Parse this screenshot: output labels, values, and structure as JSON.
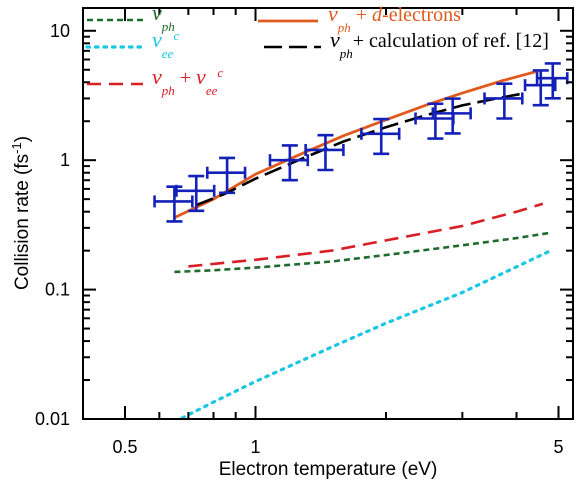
{
  "chart_data": {
    "type": "line",
    "xlabel": "Electron temperature (eV)",
    "ylabel": "Collision rate (fs-1)",
    "xscale": "log",
    "yscale": "log",
    "xlim": [
      0.4,
      5.4
    ],
    "ylim": [
      0.01,
      15
    ],
    "x_ticks": [
      0.5,
      1,
      5
    ],
    "x_tick_labels": [
      "0.5",
      "1",
      "5"
    ],
    "y_ticks": [
      0.01,
      0.1,
      1,
      10
    ],
    "y_tick_labels": [
      "0.01",
      "0.1",
      "1",
      "10"
    ],
    "grid": false,
    "legend": "top (two columns inside plot)",
    "series": [
      {
        "name": "ν_ph + d-electrons",
        "label_parts": [
          "ν",
          "ph",
          "+ ",
          "d",
          "-electrons"
        ],
        "color": "#e05a1e",
        "style": "solid",
        "x": [
          0.65,
          0.8,
          1.0,
          1.3,
          1.6,
          2.0,
          2.5,
          3.0,
          3.7,
          4.5
        ],
        "y": [
          0.36,
          0.5,
          0.78,
          1.15,
          1.55,
          2.05,
          2.7,
          3.3,
          4.1,
          4.9
        ]
      },
      {
        "name": "ν_ph + calculation of ref. [12]",
        "label_parts": [
          "ν",
          "ph",
          "+ calculation of ref. [12]"
        ],
        "color": "#000000",
        "style": "longdash",
        "x": [
          0.73,
          0.85,
          1.0,
          1.3,
          1.6,
          2.0,
          2.5,
          3.0,
          3.6,
          4.2
        ],
        "y": [
          0.45,
          0.55,
          0.72,
          1.05,
          1.4,
          1.8,
          2.25,
          2.65,
          3.0,
          3.3
        ]
      },
      {
        "name": "ν_ph",
        "label_parts": [
          "ν",
          "ph"
        ],
        "color": "#1f6b2e",
        "style": "shortdash",
        "x": [
          0.65,
          0.8,
          1.0,
          1.5,
          2.0,
          3.0,
          4.0,
          4.8
        ],
        "y": [
          0.137,
          0.141,
          0.148,
          0.165,
          0.185,
          0.22,
          0.25,
          0.275
        ]
      },
      {
        "name": "ν_ee^c",
        "label_parts": [
          "ν",
          "ee",
          "c"
        ],
        "color": "#19c6e6",
        "style": "dotted",
        "x": [
          0.65,
          0.8,
          1.0,
          1.5,
          2.0,
          3.0,
          4.0,
          4.8
        ],
        "y": [
          0.0095,
          0.0135,
          0.0195,
          0.036,
          0.055,
          0.095,
          0.15,
          0.2
        ]
      },
      {
        "name": "ν_ph + ν_ee^c",
        "label_parts": [
          "ν",
          "ph",
          "+ ",
          "ν",
          "ee",
          "c"
        ],
        "color": "#d81f26",
        "style": "dash",
        "x": [
          0.7,
          0.8,
          1.0,
          1.5,
          2.0,
          3.0,
          4.0,
          4.6
        ],
        "y": [
          0.151,
          0.158,
          0.17,
          0.2,
          0.24,
          0.31,
          0.4,
          0.46
        ]
      }
    ],
    "measurements": {
      "color": "#1321b8",
      "x": [
        0.65,
        0.73,
        0.86,
        1.2,
        1.45,
        1.95,
        2.6,
        2.85,
        3.75,
        4.55,
        4.85
      ],
      "y": [
        0.48,
        0.58,
        0.8,
        1.0,
        1.2,
        1.6,
        2.1,
        2.3,
        3.0,
        3.8,
        4.3
      ],
      "x_err_rel": [
        0.1,
        0.1,
        0.1,
        0.1,
        0.1,
        0.1,
        0.1,
        0.1,
        0.1,
        0.08,
        0.08
      ],
      "y_err_rel": [
        0.3,
        0.3,
        0.3,
        0.3,
        0.3,
        0.3,
        0.3,
        0.3,
        0.3,
        0.3,
        0.3
      ]
    }
  }
}
